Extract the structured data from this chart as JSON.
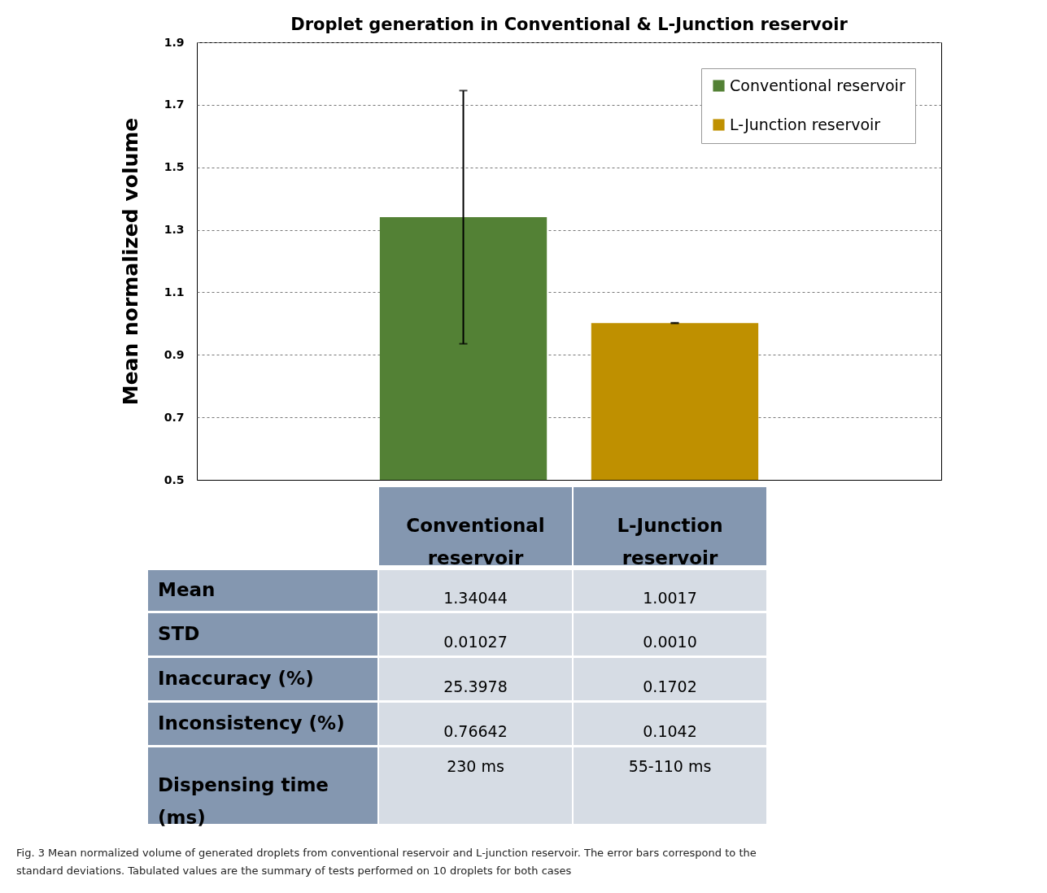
{
  "chart_data": {
    "type": "bar",
    "title": "Droplet generation in Conventional & L-Junction reservoir",
    "ylabel": "Mean normalized volume",
    "categories": [
      null
    ],
    "series": [
      {
        "name": "Conventional reservoir",
        "color": "#538135",
        "values": [
          1.34044
        ],
        "errors": [
          0.405
        ]
      },
      {
        "name": "L-Junction reservoir",
        "color": "#bf9000",
        "values": [
          1.0017
        ],
        "errors": [
          0.001
        ]
      }
    ],
    "ylim": [
      0.5,
      1.9
    ],
    "yticks": [
      0.5,
      0.7,
      0.9,
      1.1,
      1.3,
      1.5,
      1.7,
      1.9
    ],
    "grid": "y",
    "legend": "top right",
    "annotations": [
      "Conventional reservoir",
      "L-Junction reservoir",
      "Mean",
      "1.34044",
      "1.0017",
      "STD",
      "0.01027",
      "0.0010",
      "Inaccuracy (%)",
      "25.3978",
      "0.1702",
      "Inconsistency (%)",
      "0.76642",
      "0.1042",
      "Dispensing time (ms)",
      "230 ms",
      "55-110 ms",
      "Fig. 3  Mean normalized volume of generated droplets from conventional reservoir and L-junction reservoir. The error bars correspond to the standard deviations. Tabulated values are the summary of tests performed on 10 droplets for both cases"
    ]
  }
}
